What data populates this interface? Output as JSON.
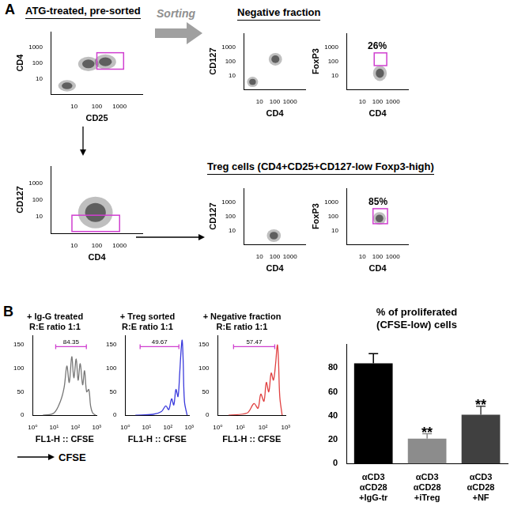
{
  "figure": {
    "panel_labels": [
      "A",
      "B"
    ],
    "headers": [
      "ATG-treated, pre-sorted",
      "Negative fraction",
      "Treg cells (CD4+CD25+CD127-low Foxp3-high)"
    ],
    "arrow_label": "Sorting",
    "cfse_label": "CFSE"
  },
  "chart_data": [
    {
      "type": "scatter",
      "x_label": "CD25",
      "y_label": "CD4",
      "log": true,
      "grid": false,
      "color": "#000000",
      "xlim": [
        1,
        10000
      ],
      "ylim": [
        1,
        10000
      ],
      "xticks": [
        10,
        100,
        1000
      ],
      "yticks": [
        10,
        100,
        1000
      ],
      "populations": [
        {
          "x": [
            2,
            12
          ],
          "y": [
            1.5,
            8
          ]
        },
        {
          "x": [
            15,
            120
          ],
          "y": [
            30,
            250
          ]
        },
        {
          "x": [
            80,
            700
          ],
          "y": [
            40,
            350
          ]
        }
      ],
      "gate": {
        "x": [
          100,
          1500
        ],
        "y": [
          40,
          450
        ]
      }
    },
    {
      "type": "scatter",
      "x_label": "CD4",
      "y_label": "CD127",
      "log": true,
      "grid": false,
      "color": "#000000",
      "xlim": [
        1,
        10000
      ],
      "ylim": [
        1,
        10000
      ],
      "xticks": [
        10,
        100,
        1000
      ],
      "yticks": [
        10,
        100,
        1000
      ],
      "populations": [
        {
          "x": [
            1.5,
            8
          ],
          "y": [
            1.5,
            8
          ]
        },
        {
          "x": [
            40,
            300
          ],
          "y": [
            50,
            400
          ]
        }
      ]
    },
    {
      "type": "scatter",
      "x_label": "CD4",
      "y_label": "FoxP3",
      "log": true,
      "grid": false,
      "color": "#000000",
      "xlim": [
        1,
        10000
      ],
      "ylim": [
        1,
        10000
      ],
      "xticks": [
        10,
        100,
        1000
      ],
      "yticks": [
        10,
        100,
        1000
      ],
      "populations": [
        {
          "x": [
            50,
            400
          ],
          "y": [
            4,
            50
          ]
        }
      ],
      "gate": {
        "x": [
          60,
          400
        ],
        "y": [
          50,
          400
        ],
        "value": 26,
        "value_label": "26%"
      }
    },
    {
      "type": "scatter",
      "x_label": "CD4",
      "y_label": "CD127",
      "log": true,
      "grid": false,
      "color": "#000000",
      "xlim": [
        1,
        10000
      ],
      "ylim": [
        1,
        10000
      ],
      "xticks": [
        10,
        100,
        1000
      ],
      "yticks": [
        10,
        100,
        1000
      ],
      "populations": [
        {
          "x": [
            15,
            500
          ],
          "y": [
            2,
            150
          ]
        }
      ],
      "gate": {
        "x": [
          8,
          1000
        ],
        "y": [
          1.3,
          12
        ]
      }
    },
    {
      "type": "scatter",
      "x_label": "CD4",
      "y_label": "CD127",
      "log": true,
      "grid": false,
      "color": "#000000",
      "xlim": [
        1,
        10000
      ],
      "ylim": [
        1,
        10000
      ],
      "xticks": [
        10,
        100,
        1000
      ],
      "yticks": [
        10,
        100,
        1000
      ],
      "populations": [
        {
          "x": [
            30,
            250
          ],
          "y": [
            1.5,
            12
          ]
        }
      ]
    },
    {
      "type": "scatter",
      "x_label": "CD4",
      "y_label": "FoxP3",
      "log": true,
      "grid": false,
      "color": "#000000",
      "xlim": [
        1,
        10000
      ],
      "ylim": [
        1,
        10000
      ],
      "xticks": [
        10,
        100,
        1000
      ],
      "yticks": [
        10,
        100,
        1000
      ],
      "populations": [
        {
          "x": [
            50,
            350
          ],
          "y": [
            25,
            200
          ]
        }
      ],
      "gate": {
        "x": [
          50,
          450
        ],
        "y": [
          30,
          350
        ],
        "value": 85,
        "value_label": "85%"
      }
    },
    {
      "type": "line",
      "title": [
        "+ Ig-G treated",
        "R:E ratio 1:1"
      ],
      "x_label": "FL1-H :: CFSE",
      "log": "x",
      "grid": false,
      "color": "#777777",
      "xlim": [
        1,
        1000
      ],
      "ylim": [
        0,
        170
      ],
      "xticks": [
        {
          "value": 1,
          "label": "10⁰"
        },
        {
          "value": 10,
          "label": "10¹"
        },
        {
          "value": 100,
          "label": "10²"
        },
        {
          "value": 1000,
          "label": "10³"
        }
      ],
      "yticks": [
        0,
        50,
        100,
        150
      ],
      "x": [
        3,
        10,
        20,
        30,
        40,
        52,
        68,
        85,
        110,
        135,
        170,
        220,
        270,
        340,
        430,
        520,
        650,
        900
      ],
      "values": [
        0,
        5,
        30,
        60,
        105,
        70,
        125,
        80,
        120,
        75,
        110,
        65,
        95,
        50,
        55,
        20,
        5,
        0
      ],
      "gate": {
        "x": [
          12,
          330
        ],
        "value": 84.35
      }
    },
    {
      "type": "line",
      "title": [
        "+ Treg sorted",
        "R:E ratio 1:1"
      ],
      "x_label": "FL1-H :: CFSE",
      "log": "x",
      "grid": false,
      "color": "#3a3adc",
      "xlim": [
        1,
        1000
      ],
      "ylim": [
        0,
        170
      ],
      "xticks": [
        {
          "value": 1,
          "label": "10⁰"
        },
        {
          "value": 10,
          "label": "10¹"
        },
        {
          "value": 100,
          "label": "10²"
        },
        {
          "value": 1000,
          "label": "10³"
        }
      ],
      "yticks": [
        0,
        50,
        100,
        150
      ],
      "x": [
        3,
        20,
        50,
        80,
        110,
        150,
        190,
        240,
        300,
        360,
        420,
        470,
        520,
        600,
        800
      ],
      "values": [
        0,
        2,
        8,
        20,
        12,
        35,
        22,
        55,
        40,
        90,
        140,
        160,
        120,
        30,
        0
      ],
      "gate": {
        "x": [
          5,
          330
        ],
        "value": 49.67
      }
    },
    {
      "type": "line",
      "title": [
        "+ Negative fraction",
        "R:E ratio 1:1"
      ],
      "x_label": "FL1-H :: CFSE",
      "log": "x",
      "grid": false,
      "color": "#e04040",
      "xlim": [
        1,
        1000
      ],
      "ylim": [
        0,
        170
      ],
      "xticks": [
        {
          "value": 1,
          "label": "10⁰"
        },
        {
          "value": 10,
          "label": "10¹"
        },
        {
          "value": 100,
          "label": "10²"
        },
        {
          "value": 1000,
          "label": "10³"
        }
      ],
      "yticks": [
        0,
        50,
        100,
        150
      ],
      "x": [
        3,
        20,
        40,
        60,
        80,
        110,
        140,
        180,
        230,
        290,
        360,
        430,
        480,
        550,
        700
      ],
      "values": [
        0,
        5,
        25,
        15,
        45,
        30,
        70,
        50,
        90,
        75,
        110,
        150,
        120,
        40,
        0
      ],
      "gate": {
        "x": [
          5,
          330
        ],
        "value": 57.47
      }
    },
    {
      "type": "bar",
      "title": [
        "% of proliferated",
        "(CFSE-low) cells"
      ],
      "grid": false,
      "categories": [
        [
          "αCD3",
          "αCD28",
          "+IgG-tr"
        ],
        [
          "αCD3",
          "αCD28",
          "+iTreg"
        ],
        [
          "αCD3",
          "αCD28",
          "+NF"
        ]
      ],
      "values": [
        84,
        21,
        41
      ],
      "errors": [
        8,
        4,
        7
      ],
      "colors": [
        "#000000",
        "#8c8c8c",
        "#404040"
      ],
      "significance": [
        null,
        "**",
        "**"
      ],
      "ylim": [
        0,
        100
      ],
      "yticks": [
        0,
        20,
        40,
        60,
        80
      ]
    }
  ]
}
